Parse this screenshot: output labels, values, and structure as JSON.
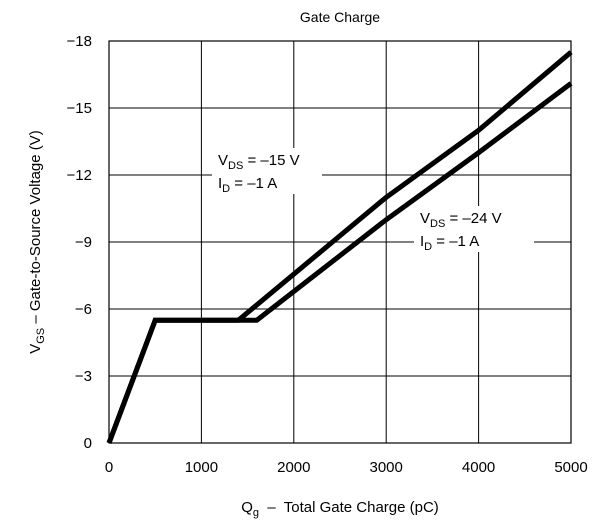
{
  "chart_data": {
    "type": "line",
    "title": "Gate Charge",
    "xlabel": {
      "main": "Q",
      "sub": "g",
      "rest": "  –  Total Gate Charge (pC)"
    },
    "ylabel": {
      "main": "V",
      "sub": "GS",
      "rest": " – Gate-to-Source Voltage (V)"
    },
    "xlim": [
      0,
      5000
    ],
    "ylim": [
      0,
      -18
    ],
    "x_ticks": [
      0,
      1000,
      2000,
      3000,
      4000,
      5000
    ],
    "x_tick_labels": [
      "0",
      "1000",
      "2000",
      "3000",
      "4000",
      "5000"
    ],
    "y_ticks": [
      0,
      -3,
      -6,
      -9,
      -12,
      -15,
      -18
    ],
    "y_tick_labels": [
      "0",
      "−3",
      "−6",
      "−9",
      "−12",
      "−15",
      "−18"
    ],
    "grid": true,
    "series": [
      {
        "x": [
          0,
          500,
          1400,
          3000,
          4000,
          5000
        ],
        "y": [
          0,
          -5.5,
          -5.5,
          -11,
          -14,
          -17.5
        ]
      },
      {
        "x": [
          0,
          500,
          1600,
          3000,
          4000,
          5000
        ],
        "y": [
          0,
          -5.5,
          -5.5,
          -10,
          -13,
          -16.1
        ]
      }
    ],
    "annotations": [
      {
        "line1": {
          "main": "V",
          "sub": "DS",
          "rest": " = –15 V"
        },
        "line2": {
          "main": "I",
          "sub": "D",
          "rest": " = –1 A"
        }
      },
      {
        "line1": {
          "main": "V",
          "sub": "DS",
          "rest": " = –24 V"
        },
        "line2": {
          "main": "I",
          "sub": "D",
          "rest": " = –1 A"
        }
      }
    ]
  }
}
